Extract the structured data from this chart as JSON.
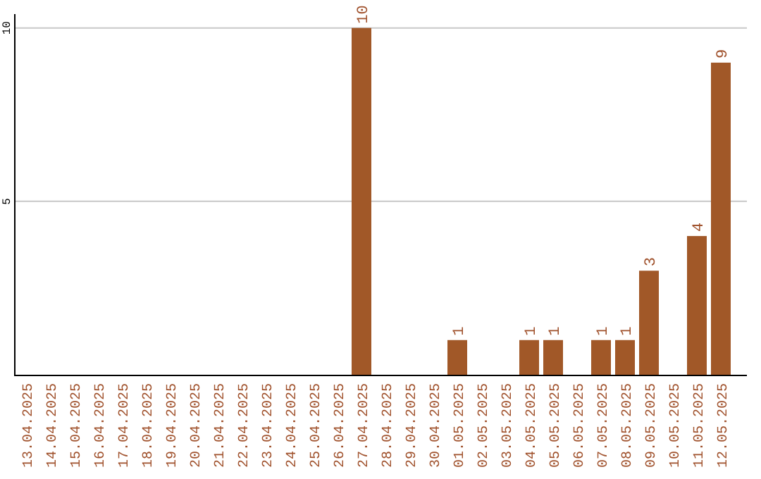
{
  "chart_data": {
    "type": "bar",
    "categories": [
      "13.04.2025",
      "14.04.2025",
      "15.04.2025",
      "16.04.2025",
      "17.04.2025",
      "18.04.2025",
      "19.04.2025",
      "20.04.2025",
      "21.04.2025",
      "22.04.2025",
      "23.04.2025",
      "24.04.2025",
      "25.04.2025",
      "26.04.2025",
      "27.04.2025",
      "28.04.2025",
      "29.04.2025",
      "30.04.2025",
      "01.05.2025",
      "02.05.2025",
      "03.05.2025",
      "04.05.2025",
      "05.05.2025",
      "06.05.2025",
      "07.05.2025",
      "08.05.2025",
      "09.05.2025",
      "10.05.2025",
      "11.05.2025",
      "12.05.2025"
    ],
    "values": [
      0,
      0,
      0,
      0,
      0,
      0,
      0,
      0,
      0,
      0,
      0,
      0,
      0,
      0,
      10,
      0,
      0,
      0,
      1,
      0,
      0,
      1,
      1,
      0,
      1,
      1,
      3,
      0,
      4,
      9
    ],
    "value_labels": [
      null,
      null,
      null,
      null,
      null,
      null,
      null,
      null,
      null,
      null,
      null,
      null,
      null,
      null,
      "10",
      null,
      null,
      null,
      "1",
      null,
      null,
      "1",
      "1",
      null,
      "1",
      "1",
      "3",
      null,
      "4",
      "9"
    ],
    "color": "#a15828",
    "ylim": [
      0,
      10.4
    ],
    "yticks": [
      5,
      10
    ],
    "grid": "y"
  }
}
